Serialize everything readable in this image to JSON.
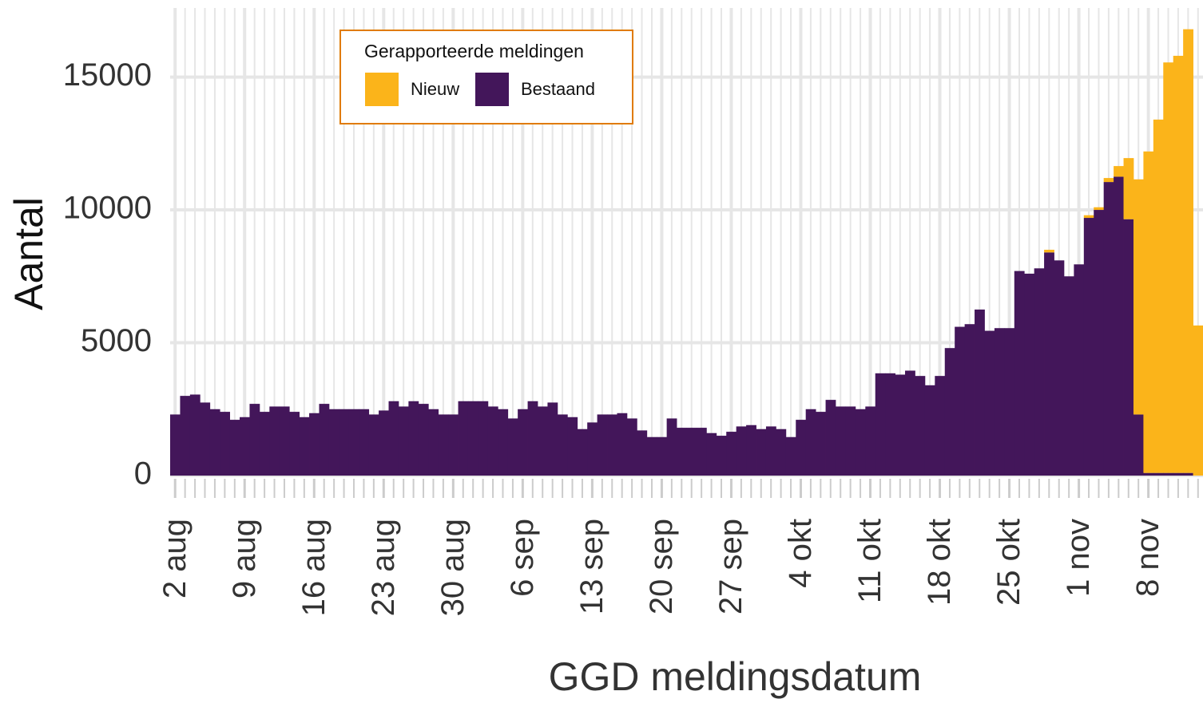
{
  "chart_data": {
    "type": "stacked-bar",
    "x_label": "GGD meldingsdatum",
    "y_label": "Aantal",
    "categories": [
      "2 aug",
      null,
      null,
      null,
      null,
      null,
      null,
      "9 aug",
      null,
      null,
      null,
      null,
      null,
      null,
      "16 aug",
      null,
      null,
      null,
      null,
      null,
      null,
      "23 aug",
      null,
      null,
      null,
      null,
      null,
      null,
      "30 aug",
      null,
      null,
      null,
      null,
      null,
      null,
      "6 sep",
      null,
      null,
      null,
      null,
      null,
      null,
      "13 sep",
      null,
      null,
      null,
      null,
      null,
      null,
      "20 sep",
      null,
      null,
      null,
      null,
      null,
      null,
      "27 sep",
      null,
      null,
      null,
      null,
      null,
      null,
      "4 okt",
      null,
      null,
      null,
      null,
      null,
      null,
      "11 okt",
      null,
      null,
      null,
      null,
      null,
      null,
      "18 okt",
      null,
      null,
      null,
      null,
      null,
      null,
      "25 okt",
      null,
      null,
      null,
      null,
      null,
      null,
      "1 nov",
      null,
      null,
      null,
      null,
      null,
      null,
      "8 nov",
      null,
      null,
      null,
      null,
      null
    ],
    "legend_title": "Gerapporteerde meldingen",
    "legend_position": "top-left",
    "series": [
      {
        "name": "Nieuw",
        "color": "#FBB41A",
        "values": [
          0,
          0,
          0,
          0,
          0,
          0,
          0,
          0,
          0,
          0,
          0,
          0,
          0,
          0,
          0,
          0,
          0,
          0,
          0,
          0,
          0,
          0,
          0,
          0,
          0,
          0,
          0,
          0,
          0,
          0,
          0,
          0,
          0,
          0,
          0,
          0,
          0,
          0,
          0,
          0,
          0,
          0,
          0,
          0,
          0,
          0,
          0,
          0,
          0,
          0,
          0,
          0,
          0,
          0,
          0,
          0,
          0,
          0,
          0,
          0,
          0,
          0,
          0,
          0,
          0,
          0,
          0,
          0,
          0,
          0,
          0,
          0,
          0,
          0,
          0,
          0,
          0,
          0,
          0,
          0,
          0,
          0,
          0,
          0,
          0,
          0,
          0,
          0,
          100,
          0,
          0,
          0,
          100,
          100,
          150,
          400,
          2300,
          8850,
          12100,
          13300,
          15450,
          15700,
          16700,
          5650
        ]
      },
      {
        "name": "Bestaand",
        "color": "#43165A",
        "values": [
          2300,
          3000,
          3050,
          2750,
          2500,
          2400,
          2100,
          2200,
          2700,
          2400,
          2600,
          2600,
          2400,
          2200,
          2350,
          2700,
          2500,
          2500,
          2500,
          2500,
          2300,
          2450,
          2800,
          2600,
          2800,
          2700,
          2500,
          2300,
          2300,
          2800,
          2800,
          2800,
          2600,
          2500,
          2150,
          2500,
          2800,
          2600,
          2750,
          2300,
          2200,
          1750,
          2000,
          2300,
          2300,
          2350,
          2150,
          1700,
          1450,
          1450,
          2150,
          1800,
          1800,
          1800,
          1600,
          1500,
          1650,
          1850,
          1900,
          1750,
          1850,
          1750,
          1450,
          2100,
          2500,
          2400,
          2850,
          2600,
          2600,
          2500,
          2600,
          3850,
          3850,
          3800,
          3950,
          3750,
          3400,
          3750,
          4800,
          5600,
          5700,
          6250,
          5450,
          5550,
          5550,
          7700,
          7600,
          7800,
          8400,
          8100,
          7500,
          7950,
          9700,
          10000,
          11050,
          11250,
          9650,
          2300,
          100,
          100,
          100,
          100,
          100,
          0
        ]
      }
    ],
    "ylim": [
      0,
      17600
    ],
    "yticks": [
      0,
      5000,
      10000,
      15000
    ],
    "grid": true
  }
}
